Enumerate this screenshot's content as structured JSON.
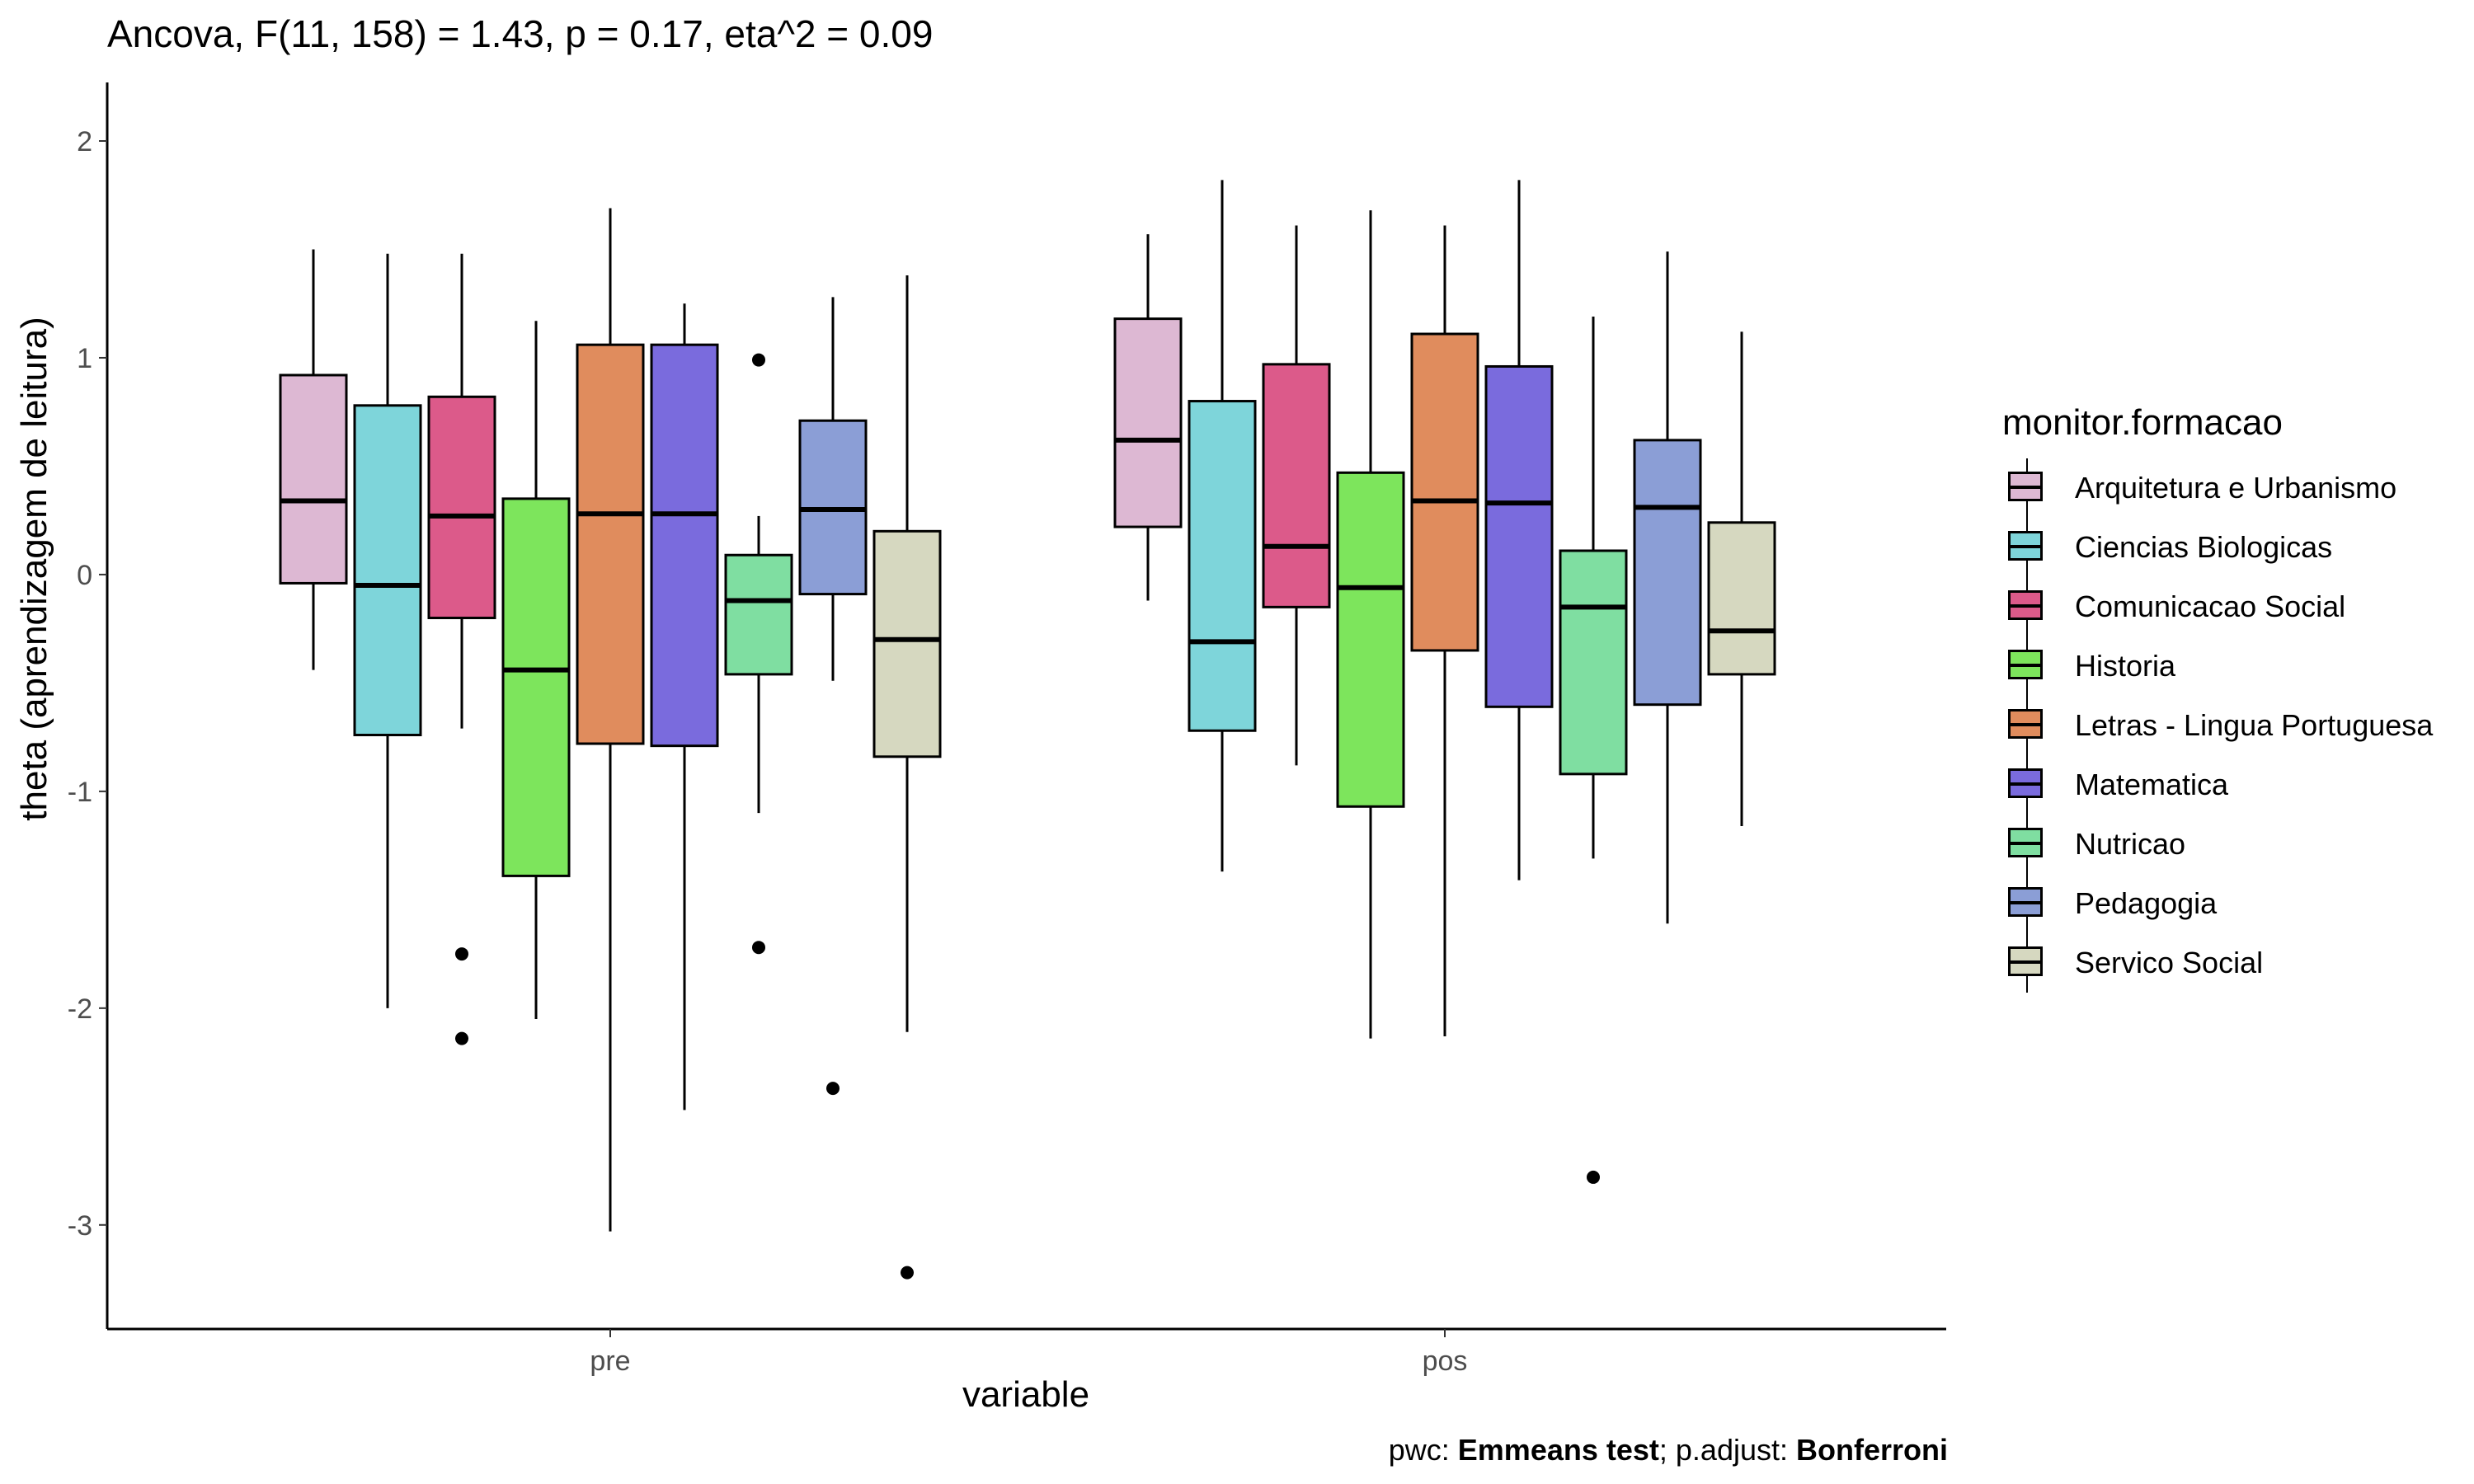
{
  "title": "Ancova, F(11, 158) = 1.43, p = 0.17, eta^2 = 0.09",
  "caption": {
    "pwc_prefix": "pwc: ",
    "pwc_value": "Emmeans test",
    "adjust_prefix": "; p.adjust: ",
    "adjust_value": "Bonferroni"
  },
  "legend": {
    "title": "monitor.formacao",
    "items": [
      {
        "label": "Arquitetura e Urbanismo",
        "color": "#DDB8D3"
      },
      {
        "label": "Ciencias Biologicas",
        "color": "#7ED5DA"
      },
      {
        "label": "Comunicacao Social",
        "color": "#DC5A8A"
      },
      {
        "label": "Historia",
        "color": "#7DE55C"
      },
      {
        "label": "Letras - Lingua Portuguesa",
        "color": "#E08C5D"
      },
      {
        "label": "Matematica",
        "color": "#7A6BDD"
      },
      {
        "label": "Nutricao",
        "color": "#7FDEA1"
      },
      {
        "label": "Pedagogia",
        "color": "#8B9ED6"
      },
      {
        "label": "Servico Social",
        "color": "#D6D8C0"
      }
    ]
  },
  "chart_data": {
    "type": "boxplot",
    "title": "Ancova, F(11, 158) = 1.43, p = 0.17, eta^2 = 0.09",
    "xlabel": "variable",
    "ylabel": "theta (aprendizagem de leitura)",
    "categories": [
      "pre",
      "pos"
    ],
    "ylim": [
      -3.48,
      2.27
    ],
    "yticks": [
      -3,
      -2,
      -1,
      0,
      1,
      2
    ],
    "ytick_labels": [
      "-3",
      "-2",
      "-1",
      "0",
      "1",
      "2"
    ],
    "grid": false,
    "legend_position": "right",
    "series": [
      {
        "name": "Arquitetura e Urbanismo",
        "color": "#DDB8D3",
        "boxes": [
          {
            "whisker_low": -0.44,
            "q1": -0.04,
            "median": 0.34,
            "q3": 0.92,
            "whisker_high": 1.5,
            "outliers": []
          },
          {
            "whisker_low": -0.12,
            "q1": 0.22,
            "median": 0.62,
            "q3": 1.18,
            "whisker_high": 1.57,
            "outliers": []
          }
        ]
      },
      {
        "name": "Ciencias Biologicas",
        "color": "#7ED5DA",
        "boxes": [
          {
            "whisker_low": -2.0,
            "q1": -0.74,
            "median": -0.05,
            "q3": 0.78,
            "whisker_high": 1.48,
            "outliers": []
          },
          {
            "whisker_low": -1.37,
            "q1": -0.72,
            "median": -0.31,
            "q3": 0.8,
            "whisker_high": 1.82,
            "outliers": []
          }
        ]
      },
      {
        "name": "Comunicacao Social",
        "color": "#DC5A8A",
        "boxes": [
          {
            "whisker_low": -0.71,
            "q1": -0.2,
            "median": 0.27,
            "q3": 0.82,
            "whisker_high": 1.48,
            "outliers": [
              -1.75,
              -2.14
            ]
          },
          {
            "whisker_low": -0.88,
            "q1": -0.15,
            "median": 0.13,
            "q3": 0.97,
            "whisker_high": 1.61,
            "outliers": []
          }
        ]
      },
      {
        "name": "Historia",
        "color": "#7DE55C",
        "boxes": [
          {
            "whisker_low": -2.05,
            "q1": -1.39,
            "median": -0.44,
            "q3": 0.35,
            "whisker_high": 1.17,
            "outliers": []
          },
          {
            "whisker_low": -2.14,
            "q1": -1.07,
            "median": -0.06,
            "q3": 0.47,
            "whisker_high": 1.68,
            "outliers": []
          }
        ]
      },
      {
        "name": "Letras - Lingua Portuguesa",
        "color": "#E08C5D",
        "boxes": [
          {
            "whisker_low": -3.03,
            "q1": -0.78,
            "median": 0.28,
            "q3": 1.06,
            "whisker_high": 1.69,
            "outliers": []
          },
          {
            "whisker_low": -2.13,
            "q1": -0.35,
            "median": 0.34,
            "q3": 1.11,
            "whisker_high": 1.61,
            "outliers": []
          }
        ]
      },
      {
        "name": "Matematica",
        "color": "#7A6BDD",
        "boxes": [
          {
            "whisker_low": -2.47,
            "q1": -0.79,
            "median": 0.28,
            "q3": 1.06,
            "whisker_high": 1.25,
            "outliers": []
          },
          {
            "whisker_low": -1.41,
            "q1": -0.61,
            "median": 0.33,
            "q3": 0.96,
            "whisker_high": 1.82,
            "outliers": []
          }
        ]
      },
      {
        "name": "Nutricao",
        "color": "#7FDEA1",
        "boxes": [
          {
            "whisker_low": -1.1,
            "q1": -0.46,
            "median": -0.12,
            "q3": 0.09,
            "whisker_high": 0.27,
            "outliers": [
              0.99,
              -1.72
            ]
          },
          {
            "whisker_low": -1.31,
            "q1": -0.92,
            "median": -0.15,
            "q3": 0.11,
            "whisker_high": 1.19,
            "outliers": [
              -2.78
            ]
          }
        ]
      },
      {
        "name": "Pedagogia",
        "color": "#8B9ED6",
        "boxes": [
          {
            "whisker_low": -0.49,
            "q1": -0.09,
            "median": 0.3,
            "q3": 0.71,
            "whisker_high": 1.28,
            "outliers": [
              -2.37
            ]
          },
          {
            "whisker_low": -1.61,
            "q1": -0.6,
            "median": 0.31,
            "q3": 0.62,
            "whisker_high": 1.49,
            "outliers": []
          }
        ]
      },
      {
        "name": "Servico Social",
        "color": "#D6D8C0",
        "boxes": [
          {
            "whisker_low": -2.11,
            "q1": -0.84,
            "median": -0.3,
            "q3": 0.2,
            "whisker_high": 1.38,
            "outliers": [
              -3.22
            ]
          },
          {
            "whisker_low": -1.16,
            "q1": -0.46,
            "median": -0.26,
            "q3": 0.24,
            "whisker_high": 1.12,
            "outliers": []
          }
        ]
      }
    ]
  }
}
